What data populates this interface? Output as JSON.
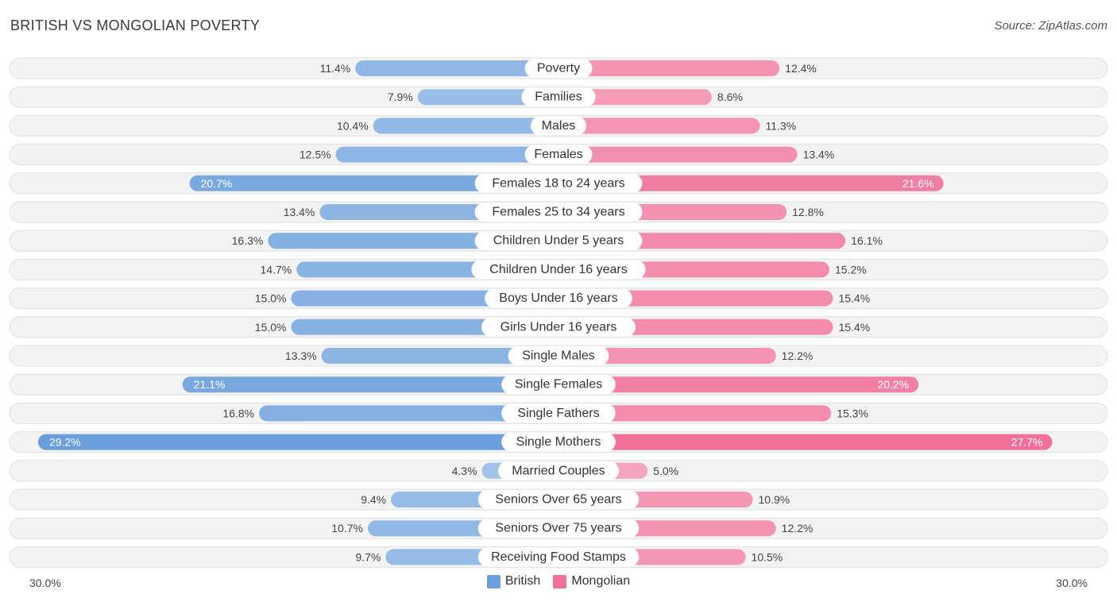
{
  "header": {
    "title": "BRITISH VS MONGOLIAN POVERTY",
    "source": "Source: ZipAtlas.com"
  },
  "chart_data": {
    "type": "bar",
    "orientation": "horizontal-diverging",
    "title": "BRITISH VS MONGOLIAN POVERTY",
    "categories": [
      "Poverty",
      "Families",
      "Males",
      "Females",
      "Females 18 to 24 years",
      "Females 25 to 34 years",
      "Children Under 5 years",
      "Children Under 16 years",
      "Boys Under 16 years",
      "Girls Under 16 years",
      "Single Males",
      "Single Females",
      "Single Fathers",
      "Single Mothers",
      "Married Couples",
      "Seniors Over 65 years",
      "Seniors Over 75 years",
      "Receiving Food Stamps"
    ],
    "series": [
      {
        "name": "British",
        "color": "#6a9fdc",
        "values": [
          11.4,
          7.9,
          10.4,
          12.5,
          20.7,
          13.4,
          16.3,
          14.7,
          15.0,
          15.0,
          13.3,
          21.1,
          16.8,
          29.2,
          4.3,
          9.4,
          10.7,
          9.7
        ],
        "labels": [
          "11.4%",
          "7.9%",
          "10.4%",
          "12.5%",
          "20.7%",
          "13.4%",
          "16.3%",
          "14.7%",
          "15.0%",
          "15.0%",
          "13.3%",
          "21.1%",
          "16.8%",
          "29.2%",
          "4.3%",
          "9.4%",
          "10.7%",
          "9.7%"
        ]
      },
      {
        "name": "Mongolian",
        "color": "#f07099",
        "values": [
          12.4,
          8.6,
          11.3,
          13.4,
          21.6,
          12.8,
          16.1,
          15.2,
          15.4,
          15.4,
          12.2,
          20.2,
          15.3,
          27.7,
          5.0,
          10.9,
          12.2,
          10.5
        ],
        "labels": [
          "12.4%",
          "8.6%",
          "11.3%",
          "13.4%",
          "21.6%",
          "12.8%",
          "16.1%",
          "15.2%",
          "15.4%",
          "15.4%",
          "12.2%",
          "20.2%",
          "15.3%",
          "27.7%",
          "5.0%",
          "10.9%",
          "12.2%",
          "10.5%"
        ]
      }
    ],
    "xlim": [
      0,
      30
    ],
    "axis_min_label": "30.0%",
    "axis_max_label": "30.0%",
    "legend_position": "bottom-center"
  }
}
